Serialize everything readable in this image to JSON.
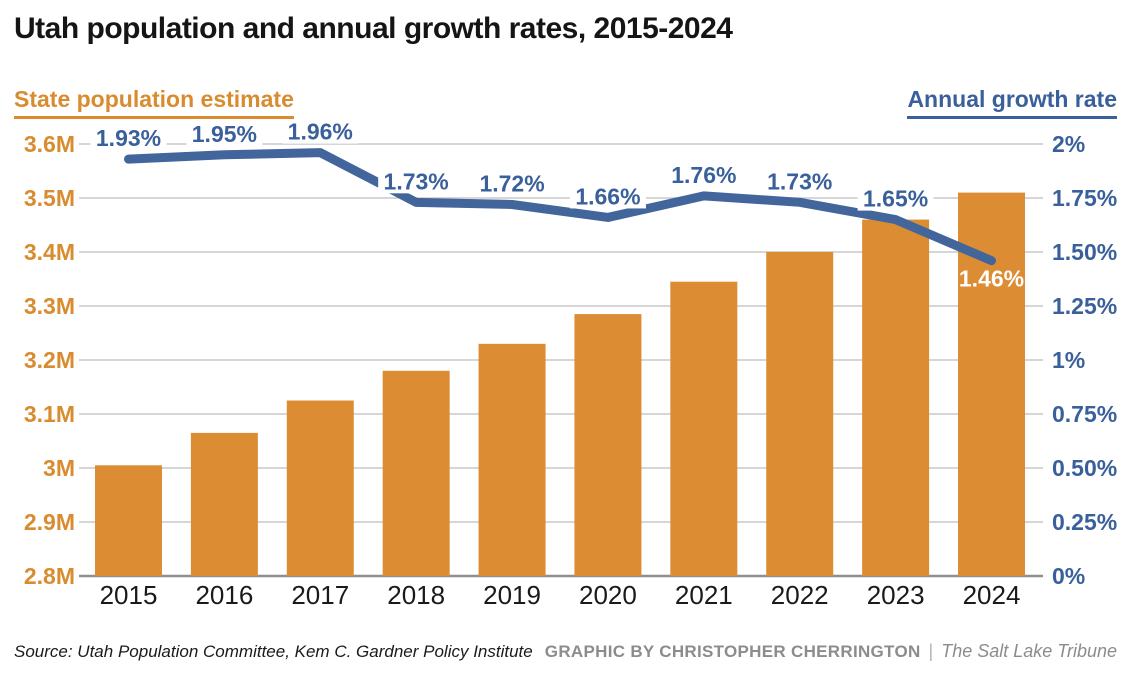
{
  "title": "Utah population and annual growth rates, 2015-2024",
  "legend": {
    "left_label": "State population estimate",
    "right_label": "Annual growth rate"
  },
  "footer": {
    "source": "Source: Utah Population Committee, Kem C. Gardner Policy Institute",
    "credit": "GRAPHIC BY CHRISTOPHER CHERRINGTON",
    "separator": "|",
    "publication": "The Salt Lake Tribune"
  },
  "colors": {
    "bar_orange": "#DC8D33",
    "line_blue": "#42659B",
    "label_blue": "#3A609B",
    "axis_orange": "#D98C2F",
    "grid_gray": "#C9C9C9",
    "baseline_gray": "#8F8F8F",
    "year_black": "#1A1A1A",
    "on_bar_label_white": "#FFFFFF"
  },
  "chart_data": {
    "type": "combo-bar-line",
    "title": "Utah population and annual growth rates, 2015-2024",
    "categories": [
      "2015",
      "2016",
      "2017",
      "2018",
      "2019",
      "2020",
      "2021",
      "2022",
      "2023",
      "2024"
    ],
    "series": [
      {
        "name": "State population estimate",
        "type": "bar",
        "axis": "left",
        "unit": "millions",
        "values": [
          3.005,
          3.065,
          3.125,
          3.18,
          3.23,
          3.285,
          3.345,
          3.4,
          3.46,
          3.51
        ]
      },
      {
        "name": "Annual growth rate",
        "type": "line",
        "axis": "right",
        "unit": "%",
        "values": [
          1.93,
          1.95,
          1.96,
          1.73,
          1.72,
          1.66,
          1.76,
          1.73,
          1.65,
          1.46
        ],
        "point_labels": [
          "1.93%",
          "1.95%",
          "1.96%",
          "1.73%",
          "1.72%",
          "1.66%",
          "1.76%",
          "1.73%",
          "1.65%",
          "1.46%"
        ]
      }
    ],
    "left_axis": {
      "min": 2.8,
      "max": 3.6,
      "ticks": [
        "3.6M",
        "3.5M",
        "3.4M",
        "3.3M",
        "3.2M",
        "3.1M",
        "3M",
        "2.9M",
        "2.8M"
      ]
    },
    "right_axis": {
      "min": 0,
      "max": 2,
      "ticks": [
        "2%",
        "1.75%",
        "1.50%",
        "1.25%",
        "1%",
        "0.75%",
        "0.50%",
        "0.25%",
        "0%"
      ]
    },
    "grid": true,
    "legend_position": "top"
  }
}
